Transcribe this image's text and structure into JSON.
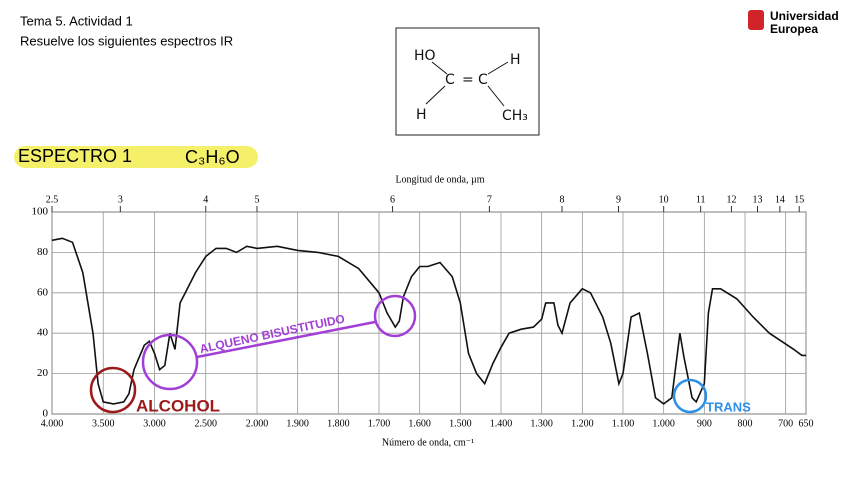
{
  "header": {
    "topic": "Tema 5. Actividad 1",
    "instruction": "Resuelve los siguientes espectros IR",
    "logo": [
      "Universidad",
      "Europea"
    ]
  },
  "molecule": {
    "atoms": [
      "HO",
      "C",
      "=",
      "C",
      "H",
      "H",
      "CH₃"
    ]
  },
  "exercise": {
    "title": "ESPECTRO  1",
    "formula": "C₃H₆O"
  },
  "spectrum": {
    "type": "line",
    "top_label": "Longitud de onda, µm",
    "x_label": "Número de onda, cm⁻¹",
    "color": "#111111",
    "xlim": [
      4000,
      650
    ],
    "ylim": [
      0,
      100
    ],
    "xticks": [
      {
        "value": 4000,
        "label": "4.000"
      },
      {
        "value": 3500,
        "label": "3.500"
      },
      {
        "value": 3000,
        "label": "3.000"
      },
      {
        "value": 2500,
        "label": "2.500"
      },
      {
        "value": 2000,
        "label": "2.000"
      },
      {
        "value": 1900,
        "label": "1.900"
      },
      {
        "value": 1800,
        "label": "1.800"
      },
      {
        "value": 1700,
        "label": "1.700"
      },
      {
        "value": 1600,
        "label": "1.600"
      },
      {
        "value": 1500,
        "label": "1.500"
      },
      {
        "value": 1400,
        "label": "1.400"
      },
      {
        "value": 1300,
        "label": "1.300"
      },
      {
        "value": 1200,
        "label": "1.200"
      },
      {
        "value": 1100,
        "label": "1.100"
      },
      {
        "value": 1000,
        "label": "1.000"
      },
      900,
      800,
      700,
      650
    ],
    "top_ticks": [
      2.5,
      3,
      4,
      5,
      6,
      7,
      8,
      9,
      10,
      11,
      12,
      13,
      14,
      15
    ],
    "yticks": [
      0,
      20,
      40,
      60,
      80,
      100
    ],
    "x": [
      4000,
      3900,
      3800,
      3700,
      3600,
      3550,
      3500,
      3400,
      3300,
      3250,
      3200,
      3150,
      3100,
      3050,
      3000,
      2950,
      2900,
      2850,
      2800,
      2750,
      2700,
      2600,
      2500,
      2400,
      2300,
      2200,
      2100,
      2000,
      1950,
      1900,
      1850,
      1800,
      1750,
      1700,
      1680,
      1660,
      1650,
      1640,
      1620,
      1600,
      1580,
      1550,
      1520,
      1500,
      1480,
      1460,
      1440,
      1420,
      1400,
      1380,
      1350,
      1320,
      1300,
      1290,
      1270,
      1260,
      1250,
      1230,
      1200,
      1180,
      1150,
      1130,
      1110,
      1100,
      1080,
      1060,
      1040,
      1020,
      1000,
      980,
      960,
      950,
      930,
      920,
      900,
      890,
      880,
      860,
      820,
      780,
      740,
      710,
      680,
      660,
      650
    ],
    "values": [
      86,
      87,
      85,
      70,
      40,
      15,
      6,
      5,
      6,
      10,
      22,
      28,
      34,
      36,
      30,
      22,
      24,
      40,
      32,
      55,
      60,
      70,
      78,
      82,
      82,
      80,
      83,
      82,
      83,
      81,
      80,
      78,
      72,
      60,
      50,
      43,
      46,
      58,
      68,
      73,
      73,
      75,
      68,
      55,
      30,
      20,
      15,
      25,
      33,
      40,
      42,
      43,
      47,
      55,
      55,
      44,
      40,
      55,
      62,
      60,
      48,
      35,
      15,
      20,
      48,
      50,
      30,
      8,
      5,
      8,
      40,
      28,
      8,
      6,
      15,
      50,
      62,
      62,
      57,
      48,
      40,
      36,
      32,
      29,
      29
    ],
    "annotations": [
      "ALCOHOL",
      "ALQUENO BISUSTITUIDO",
      "TRANS"
    ]
  }
}
